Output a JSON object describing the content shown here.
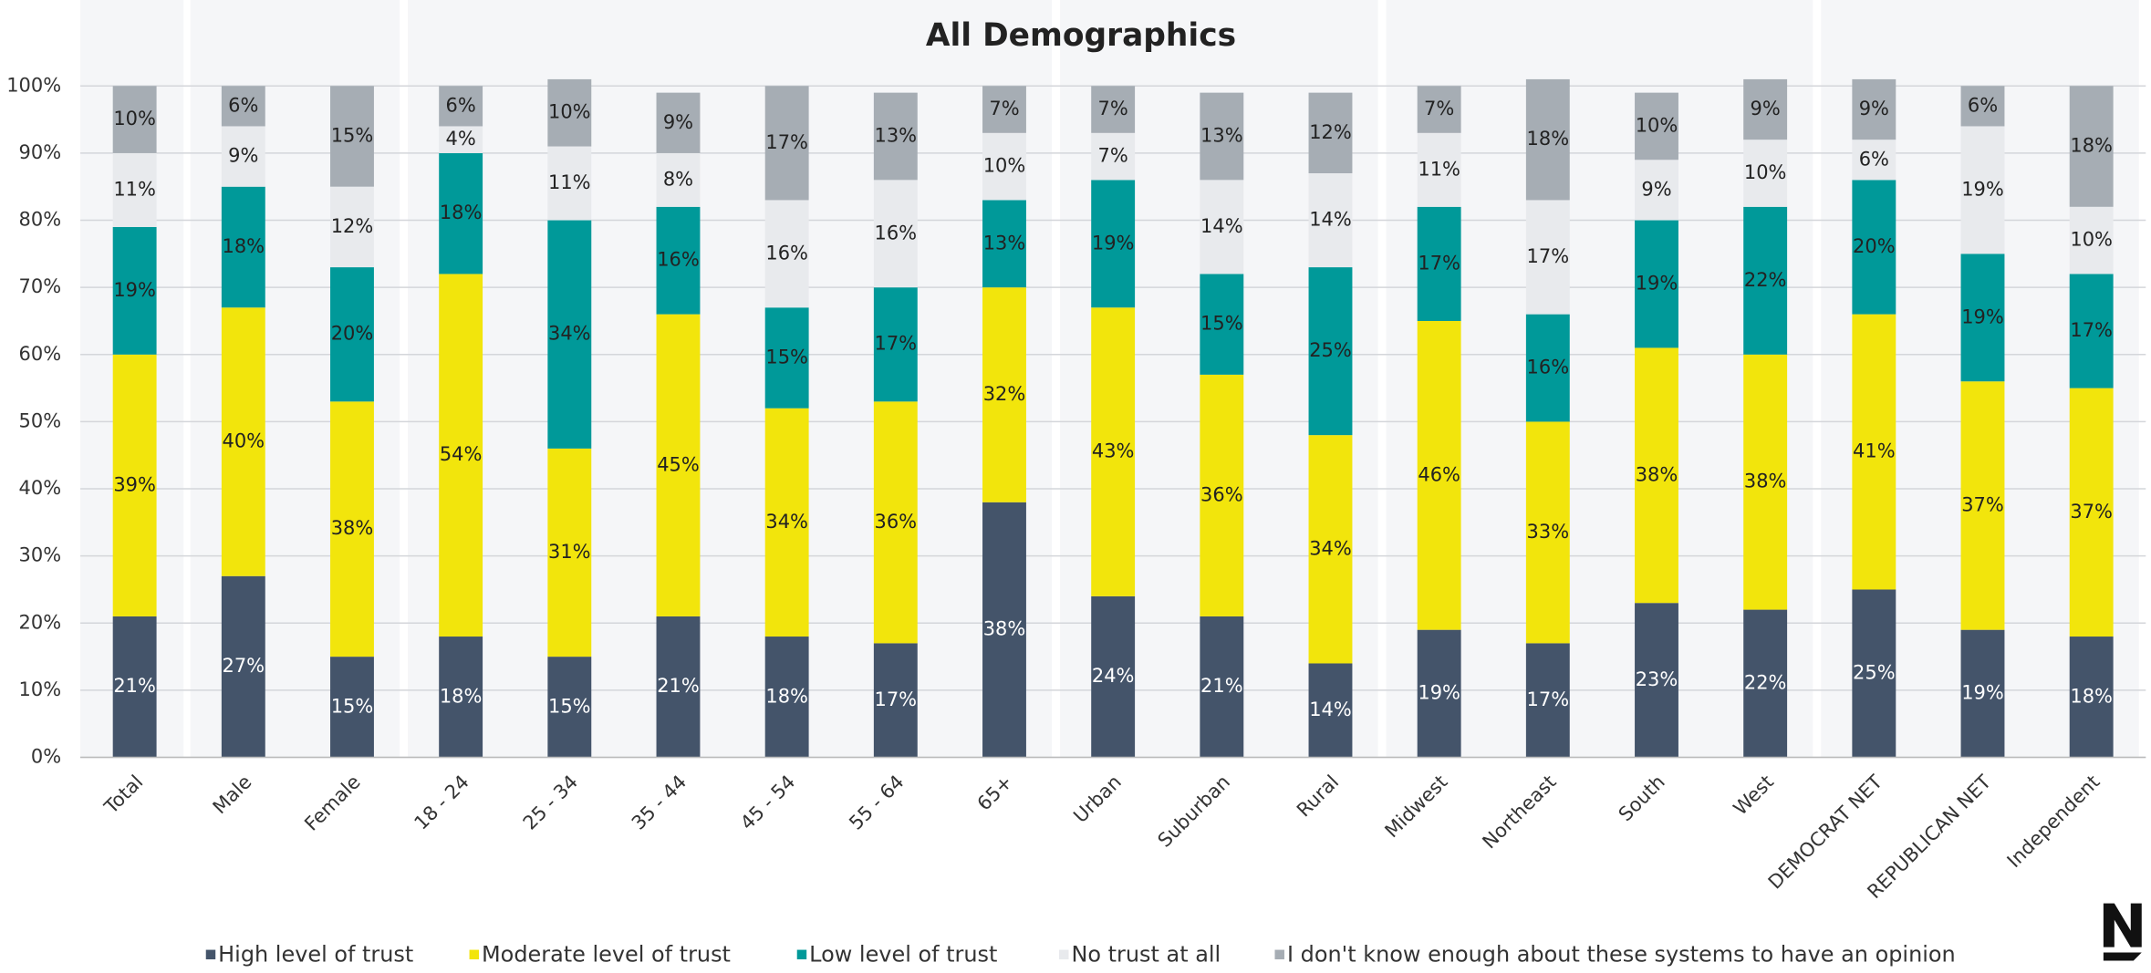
{
  "chart_data": {
    "type": "stacked_bar",
    "title": "All Demographics",
    "categories": [
      "Total",
      "Male",
      "Female",
      "18 - 24",
      "25 - 34",
      "35 - 44",
      "45 - 54",
      "55 - 64",
      "65+",
      "Urban",
      "Suburban",
      "Rural",
      "Midwest",
      "Northeast",
      "South",
      "West",
      "DEMOCRAT NET",
      "REPUBLICAN NET",
      "Independent"
    ],
    "series": [
      {
        "name": "High level of trust",
        "color": "#44546a",
        "values": [
          21,
          27,
          15,
          18,
          15,
          21,
          18,
          17,
          38,
          24,
          21,
          14,
          19,
          17,
          23,
          22,
          25,
          19,
          18
        ],
        "value_labels": [
          "21%",
          "27%",
          "15%",
          "18%",
          "15%",
          "21%",
          "18%",
          "17%",
          "38%",
          "24%",
          "21%",
          "14%",
          "19%",
          "17%",
          "23%",
          "22%",
          "25%",
          "19%",
          "18%"
        ]
      },
      {
        "name": "Moderate level of trust",
        "color": "#f2e50c",
        "values": [
          39,
          40,
          38,
          54,
          31,
          45,
          34,
          36,
          32,
          43,
          36,
          34,
          46,
          33,
          38,
          38,
          41,
          37,
          37
        ],
        "value_labels": [
          "39%",
          "40%",
          "38%",
          "54%",
          "31%",
          "45%",
          "34%",
          "36%",
          "32%",
          "43%",
          "36%",
          "34%",
          "46%",
          "33%",
          "38%",
          "38%",
          "41%",
          "37%",
          "37%"
        ]
      },
      {
        "name": "Low level of trust",
        "color": "#009999",
        "values": [
          19,
          18,
          20,
          18,
          34,
          16,
          15,
          17,
          13,
          19,
          15,
          25,
          17,
          16,
          19,
          22,
          20,
          19,
          17
        ],
        "value_labels": [
          "19%",
          "18%",
          "20%",
          "18%",
          "34%",
          "16%",
          "15%",
          "17%",
          "13%",
          "19%",
          "15%",
          "25%",
          "17%",
          "16%",
          "19%",
          "22%",
          "20%",
          "19%",
          "17%"
        ]
      },
      {
        "name": "No trust at all",
        "color": "#e8eaed",
        "values": [
          11,
          9,
          12,
          4,
          11,
          8,
          16,
          16,
          10,
          7,
          14,
          14,
          11,
          17,
          9,
          10,
          6,
          19,
          10
        ],
        "value_labels": [
          "11%",
          "9%",
          "12%",
          "4%",
          "11%",
          "8%",
          "16%",
          "16%",
          "10%",
          "7%",
          "14%",
          "14%",
          "11%",
          "17%",
          "9%",
          "10%",
          "6%",
          "19%",
          "10%"
        ]
      },
      {
        "name": "I don't know enough about these systems to have an opinion",
        "color": "#a6adb4",
        "values": [
          10,
          6,
          15,
          6,
          10,
          9,
          17,
          13,
          7,
          7,
          13,
          12,
          7,
          18,
          10,
          9,
          9,
          6,
          18
        ],
        "value_labels": [
          "10%",
          "6%",
          "15%",
          "6%",
          "10%",
          "9%",
          "17%",
          "13%",
          "7%",
          "7%",
          "13%",
          "12%",
          "7%",
          "18%",
          "10%",
          "9%",
          "9%",
          "6%",
          "18%"
        ]
      }
    ],
    "ylim": [
      0,
      100
    ],
    "yticks": [
      {
        "value": 0,
        "label": "0%"
      },
      {
        "value": 10,
        "label": "10%"
      },
      {
        "value": 20,
        "label": "20%"
      },
      {
        "value": 30,
        "label": "30%"
      },
      {
        "value": 40,
        "label": "40%"
      },
      {
        "value": 50,
        "label": "50%"
      },
      {
        "value": 60,
        "label": "60%"
      },
      {
        "value": 70,
        "label": "70%"
      },
      {
        "value": 80,
        "label": "80%"
      },
      {
        "value": 90,
        "label": "90%"
      },
      {
        "value": 100,
        "label": "100%"
      }
    ],
    "grid": true,
    "legend": "bottom"
  }
}
